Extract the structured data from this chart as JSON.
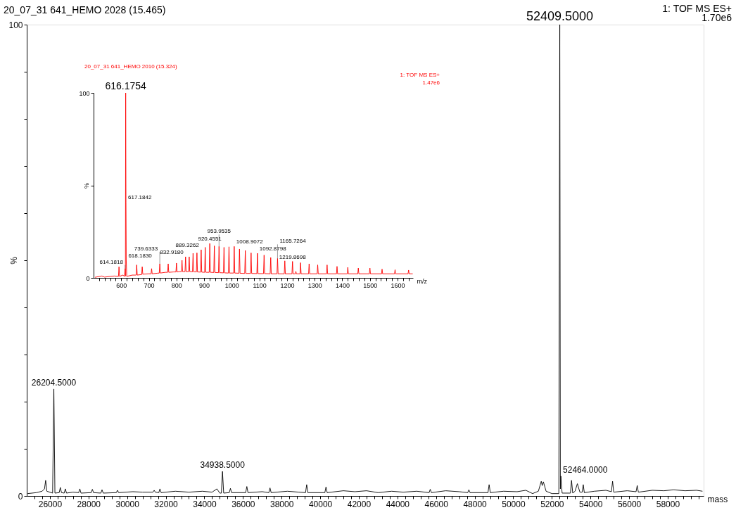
{
  "chart_data": [
    {
      "type": "line",
      "title": "20_07_31 641_HEMO  2028 (15.465)",
      "xlabel": "mass",
      "ylabel": "%",
      "xlim": [
        24800,
        59860
      ],
      "ylim": [
        0,
        100
      ],
      "xticks": [
        26000,
        28000,
        30000,
        32000,
        34000,
        36000,
        38000,
        40000,
        42000,
        44000,
        46000,
        48000,
        50000,
        52000,
        54000,
        56000,
        58000,
        {
          "value": 25200,
          "label": null
        },
        {
          "value": 25600,
          "label": null
        },
        {
          "value": 26400,
          "label": null
        },
        {
          "value": 26800,
          "label": null
        },
        {
          "value": 27200,
          "label": null
        },
        {
          "value": 27600,
          "label": null
        },
        {
          "value": 28400,
          "label": null
        },
        {
          "value": 28800,
          "label": null
        },
        {
          "value": 29200,
          "label": null
        },
        {
          "value": 29600,
          "label": null
        },
        {
          "value": 30400,
          "label": null
        },
        {
          "value": 30800,
          "label": null
        },
        {
          "value": 31200,
          "label": null
        },
        {
          "value": 31600,
          "label": null
        },
        {
          "value": 32400,
          "label": null
        },
        {
          "value": 32800,
          "label": null
        },
        {
          "value": 33200,
          "label": null
        },
        {
          "value": 33600,
          "label": null
        },
        {
          "value": 34400,
          "label": null
        },
        {
          "value": 34800,
          "label": null
        },
        {
          "value": 35200,
          "label": null
        },
        {
          "value": 35600,
          "label": null
        },
        {
          "value": 36400,
          "label": null
        },
        {
          "value": 36800,
          "label": null
        },
        {
          "value": 37200,
          "label": null
        },
        {
          "value": 37600,
          "label": null
        },
        {
          "value": 38400,
          "label": null
        },
        {
          "value": 38800,
          "label": null
        },
        {
          "value": 39200,
          "label": null
        },
        {
          "value": 39600,
          "label": null
        },
        {
          "value": 40400,
          "label": null
        },
        {
          "value": 40800,
          "label": null
        },
        {
          "value": 41200,
          "label": null
        },
        {
          "value": 41600,
          "label": null
        },
        {
          "value": 42400,
          "label": null
        },
        {
          "value": 42800,
          "label": null
        },
        {
          "value": 43200,
          "label": null
        },
        {
          "value": 43600,
          "label": null
        },
        {
          "value": 44400,
          "label": null
        },
        {
          "value": 44800,
          "label": null
        },
        {
          "value": 45200,
          "label": null
        },
        {
          "value": 45600,
          "label": null
        },
        {
          "value": 46400,
          "label": null
        },
        {
          "value": 46800,
          "label": null
        },
        {
          "value": 47200,
          "label": null
        },
        {
          "value": 47600,
          "label": null
        },
        {
          "value": 48400,
          "label": null
        },
        {
          "value": 48800,
          "label": null
        },
        {
          "value": 49200,
          "label": null
        },
        {
          "value": 49600,
          "label": null
        },
        {
          "value": 50400,
          "label": null
        },
        {
          "value": 50800,
          "label": null
        },
        {
          "value": 51200,
          "label": null
        },
        {
          "value": 51600,
          "label": null
        },
        {
          "value": 52400,
          "label": null
        },
        {
          "value": 52800,
          "label": null
        },
        {
          "value": 53200,
          "label": null
        },
        {
          "value": 53600,
          "label": null
        },
        {
          "value": 54400,
          "label": null
        },
        {
          "value": 54800,
          "label": null
        },
        {
          "value": 55200,
          "label": null
        },
        {
          "value": 55600,
          "label": null
        },
        {
          "value": 56400,
          "label": null
        },
        {
          "value": 56800,
          "label": null
        },
        {
          "value": 57200,
          "label": null
        },
        {
          "value": 57600,
          "label": null
        },
        {
          "value": 58400,
          "label": null
        },
        {
          "value": 58800,
          "label": null
        },
        {
          "value": 59200,
          "label": null
        },
        {
          "value": 59600,
          "label": null
        }
      ],
      "yticks": [
        0,
        100,
        {
          "value": 10,
          "label": null
        },
        {
          "value": 20,
          "label": null
        },
        {
          "value": 30,
          "label": null
        },
        {
          "value": 40,
          "label": null
        },
        {
          "value": 50,
          "label": null
        },
        {
          "value": 60,
          "label": null
        },
        {
          "value": 70,
          "label": null
        },
        {
          "value": 80,
          "label": null
        },
        {
          "value": 90,
          "label": null
        }
      ],
      "x": [
        24850,
        25300,
        25600,
        25720,
        25780,
        25840,
        26140,
        26204.5,
        26260,
        26480,
        26540,
        26600,
        26740,
        26800,
        26860,
        27200,
        27490,
        27550,
        27610,
        28140,
        28200,
        28260,
        28640,
        28700,
        28760,
        29440,
        29500,
        29560,
        30300,
        30800,
        31340,
        31400,
        31460,
        31640,
        31700,
        31760,
        32500,
        33200,
        33900,
        34400,
        34650,
        34800,
        34880,
        34938.5,
        35000,
        35290,
        35350,
        35410,
        36140,
        36200,
        36260,
        37000,
        37340,
        37400,
        37460,
        38300,
        38900,
        39240,
        39300,
        39360,
        40240,
        40300,
        40360,
        41200,
        41800,
        42400,
        43000,
        43700,
        44300,
        45000,
        45640,
        45700,
        45760,
        46500,
        47200,
        47640,
        47700,
        47760,
        48690,
        48750,
        48810,
        49500,
        50200,
        50650,
        51000,
        51300,
        51450,
        51500,
        51560,
        51700,
        52000,
        52360,
        52409.5,
        52440,
        52464,
        52530,
        52900,
        52960,
        53018,
        53080,
        53200,
        53321,
        53450,
        53570,
        53625,
        53680,
        54200,
        54800,
        55084,
        55144,
        55204,
        55900,
        56360,
        56420,
        56480,
        57200,
        57800,
        58300,
        58900,
        59500,
        59800
      ],
      "series": [
        {
          "color": "#000000",
          "values": [
            0.5,
            0.7,
            1.0,
            1.5,
            3.3,
            1.0,
            0.6,
            22.7,
            0.6,
            0.7,
            1.8,
            0.7,
            0.6,
            1.5,
            0.6,
            0.8,
            0.7,
            1.5,
            0.6,
            0.7,
            1.4,
            0.7,
            0.6,
            1.3,
            0.6,
            0.7,
            1.2,
            0.7,
            0.9,
            0.8,
            0.8,
            1.2,
            0.8,
            0.7,
            1.5,
            0.7,
            1.0,
            0.8,
            1.0,
            0.8,
            1.5,
            0.6,
            0.6,
            5.2,
            0.6,
            0.7,
            1.6,
            0.7,
            0.7,
            2.0,
            0.7,
            0.9,
            0.7,
            1.7,
            0.7,
            1.0,
            0.8,
            0.7,
            2.4,
            0.7,
            0.7,
            1.9,
            0.7,
            1.1,
            0.9,
            1.1,
            0.7,
            1.0,
            0.8,
            1.0,
            0.7,
            1.4,
            0.7,
            1.1,
            0.9,
            0.7,
            1.3,
            0.7,
            0.7,
            2.4,
            0.7,
            1.0,
            0.9,
            1.2,
            0.5,
            1.0,
            3.1,
            2.2,
            3.0,
            1.0,
            0.5,
            0.5,
            100,
            1.5,
            4.2,
            0.6,
            0.6,
            0.6,
            3.3,
            0.6,
            1.0,
            2.6,
            0.8,
            0.8,
            2.4,
            0.7,
            1.0,
            1.2,
            0.9,
            3.1,
            0.8,
            1.1,
            0.9,
            2.2,
            0.8,
            1.2,
            1.1,
            1.3,
            1.1,
            1.2,
            1.0
          ]
        }
      ],
      "annotations": [
        "1: TOF MS ES+",
        "1.70e6",
        {
          "text": "26204.5000",
          "x": 26204.5,
          "y": 22.7
        },
        {
          "text": "34938.5000",
          "x": 34938.5,
          "y": 5.2
        },
        {
          "text": "52409.5000",
          "x": 52409.5,
          "y": 100
        },
        {
          "text": "52464.0000",
          "x": 52464,
          "y": 4.2
        }
      ]
    },
    {
      "type": "line",
      "title": "20_07_31 641_HEMO 2010 (15.324)",
      "xlabel": "m/z",
      "ylabel": "%",
      "xlim": [
        500,
        1656
      ],
      "ylim": [
        0,
        100
      ],
      "xticks": [
        600,
        700,
        800,
        900,
        1000,
        1100,
        1200,
        1300,
        1400,
        1500,
        1600,
        {
          "value": 520,
          "label": null
        },
        {
          "value": 540,
          "label": null
        },
        {
          "value": 560,
          "label": null
        },
        {
          "value": 580,
          "label": null
        },
        {
          "value": 620,
          "label": null
        },
        {
          "value": 640,
          "label": null
        },
        {
          "value": 660,
          "label": null
        },
        {
          "value": 680,
          "label": null
        },
        {
          "value": 720,
          "label": null
        },
        {
          "value": 740,
          "label": null
        },
        {
          "value": 760,
          "label": null
        },
        {
          "value": 780,
          "label": null
        },
        {
          "value": 820,
          "label": null
        },
        {
          "value": 840,
          "label": null
        },
        {
          "value": 860,
          "label": null
        },
        {
          "value": 880,
          "label": null
        },
        {
          "value": 920,
          "label": null
        },
        {
          "value": 940,
          "label": null
        },
        {
          "value": 960,
          "label": null
        },
        {
          "value": 980,
          "label": null
        },
        {
          "value": 1020,
          "label": null
        },
        {
          "value": 1040,
          "label": null
        },
        {
          "value": 1060,
          "label": null
        },
        {
          "value": 1080,
          "label": null
        },
        {
          "value": 1120,
          "label": null
        },
        {
          "value": 1140,
          "label": null
        },
        {
          "value": 1160,
          "label": null
        },
        {
          "value": 1180,
          "label": null
        },
        {
          "value": 1220,
          "label": null
        },
        {
          "value": 1240,
          "label": null
        },
        {
          "value": 1260,
          "label": null
        },
        {
          "value": 1280,
          "label": null
        },
        {
          "value": 1320,
          "label": null
        },
        {
          "value": 1340,
          "label": null
        },
        {
          "value": 1360,
          "label": null
        },
        {
          "value": 1380,
          "label": null
        },
        {
          "value": 1420,
          "label": null
        },
        {
          "value": 1440,
          "label": null
        },
        {
          "value": 1460,
          "label": null
        },
        {
          "value": 1480,
          "label": null
        },
        {
          "value": 1520,
          "label": null
        },
        {
          "value": 1540,
          "label": null
        },
        {
          "value": 1560,
          "label": null
        },
        {
          "value": 1580,
          "label": null
        },
        {
          "value": 1620,
          "label": null
        },
        {
          "value": 1640,
          "label": null
        }
      ],
      "yticks": [
        0,
        100,
        {
          "value": 50,
          "label": null
        }
      ],
      "x": [
        505,
        530,
        540,
        560,
        575,
        590,
        592,
        594,
        606,
        612,
        614.1818,
        615.2,
        616.1754,
        617.1842,
        618.183,
        620,
        640,
        654,
        656,
        658,
        674,
        676,
        678,
        700,
        708,
        710,
        712,
        730,
        737.6,
        739.6333,
        741.6,
        760,
        768,
        770,
        772,
        790,
        798,
        800,
        802,
        810,
        818,
        820,
        822,
        830.9,
        832.918,
        834.9,
        844,
        846,
        848,
        858,
        860,
        862,
        872,
        874,
        876,
        887.3,
        889.3262,
        891.3,
        902,
        904,
        906,
        918.5,
        920.4551,
        922.5,
        935,
        937,
        939,
        952,
        953.9535,
        956,
        970,
        972,
        974,
        988,
        990,
        992,
        1006.9,
        1008.9072,
        1010.9,
        1026,
        1028,
        1030,
        1047,
        1049,
        1051,
        1068,
        1070,
        1072,
        1090.9,
        1092.8798,
        1094.9,
        1115,
        1117,
        1119,
        1139,
        1141,
        1143,
        1163.7,
        1165.7264,
        1167.7,
        1190,
        1192,
        1194,
        1217.9,
        1219.8698,
        1221.9,
        1230,
        1232,
        1234,
        1247,
        1249,
        1251,
        1278,
        1280,
        1282,
        1309,
        1311,
        1313,
        1343,
        1345,
        1347,
        1379,
        1381,
        1383,
        1418,
        1420,
        1422,
        1456,
        1458,
        1460,
        1498,
        1500,
        1502,
        1542,
        1544,
        1546,
        1589,
        1591,
        1593,
        1638,
        1640,
        1642,
        1655
      ],
      "series": [
        {
          "color": "#ff0000",
          "values": [
            0.3,
            1.0,
            0.4,
            0.8,
            1.0,
            0.8,
            6,
            0.8,
            1.5,
            0.8,
            5,
            1,
            100,
            41,
            9.5,
            0.8,
            1.5,
            1.5,
            7,
            1.5,
            1.8,
            6,
            2.0,
            2.2,
            2.2,
            5,
            2.2,
            2.5,
            2.6,
            7.6,
            2.6,
            3,
            3,
            7.6,
            3,
            3.2,
            3.2,
            8,
            3.2,
            3.4,
            3.4,
            9.5,
            3.4,
            3.4,
            11.4,
            3.4,
            3.4,
            11.4,
            3.4,
            3.3,
            13.3,
            3.3,
            3.2,
            13.5,
            3.2,
            3.1,
            15.2,
            3.1,
            3,
            16.5,
            3,
            3,
            18.6,
            3,
            2.9,
            17.3,
            2.9,
            2.8,
            17,
            2.8,
            2.7,
            16.5,
            2.7,
            2.6,
            16.8,
            2.6,
            2.6,
            17,
            2.6,
            2.5,
            15.6,
            2.5,
            2.4,
            14.8,
            2.4,
            2.4,
            13.5,
            2.4,
            2.3,
            13.3,
            2.3,
            2.3,
            12.3,
            2.3,
            2.2,
            11,
            2.2,
            2.2,
            10.5,
            2.2,
            2.2,
            9.2,
            2.2,
            2.2,
            8.9,
            2.2,
            2.2,
            3.5,
            2.2,
            2.2,
            8.2,
            2.2,
            2.2,
            7.6,
            2.2,
            2.2,
            7,
            2.2,
            2.2,
            7,
            2.2,
            2.2,
            6.2,
            2.2,
            2.2,
            5.7,
            2.2,
            2.2,
            5.3,
            2.2,
            2.2,
            5.3,
            2.2,
            2.2,
            4.7,
            2.2,
            2.2,
            4.4,
            2.2,
            2.2,
            4.2,
            2.2,
            2.2
          ]
        }
      ],
      "annotations": [
        "1: TOF MS ES+",
        "1.47e6",
        {
          "text": "614.1818",
          "x": 614.1818,
          "y": 5
        },
        {
          "text": "616.1754",
          "x": 616.1754,
          "y": 100
        },
        {
          "text": "617.1842",
          "x": 617.1842,
          "y": 41
        },
        {
          "text": "618.1830",
          "x": 618.183,
          "y": 9.5
        },
        {
          "text": "739.6333",
          "x": 739.6333,
          "y": 7.6
        },
        {
          "text": "832.9180",
          "x": 832.918,
          "y": 11.4
        },
        {
          "text": "889.3262",
          "x": 889.3262,
          "y": 15.2
        },
        {
          "text": "920.4551",
          "x": 920.4551,
          "y": 18.6
        },
        {
          "text": "953.9535",
          "x": 953.9535,
          "y": 17
        },
        {
          "text": "1008.9072",
          "x": 1008.9072,
          "y": 17
        },
        {
          "text": "1092.8798",
          "x": 1092.8798,
          "y": 13.3
        },
        {
          "text": "1165.7264",
          "x": 1165.7264,
          "y": 10.5
        },
        {
          "text": "1219.8698",
          "x": 1219.8698,
          "y": 8.9
        }
      ]
    }
  ]
}
